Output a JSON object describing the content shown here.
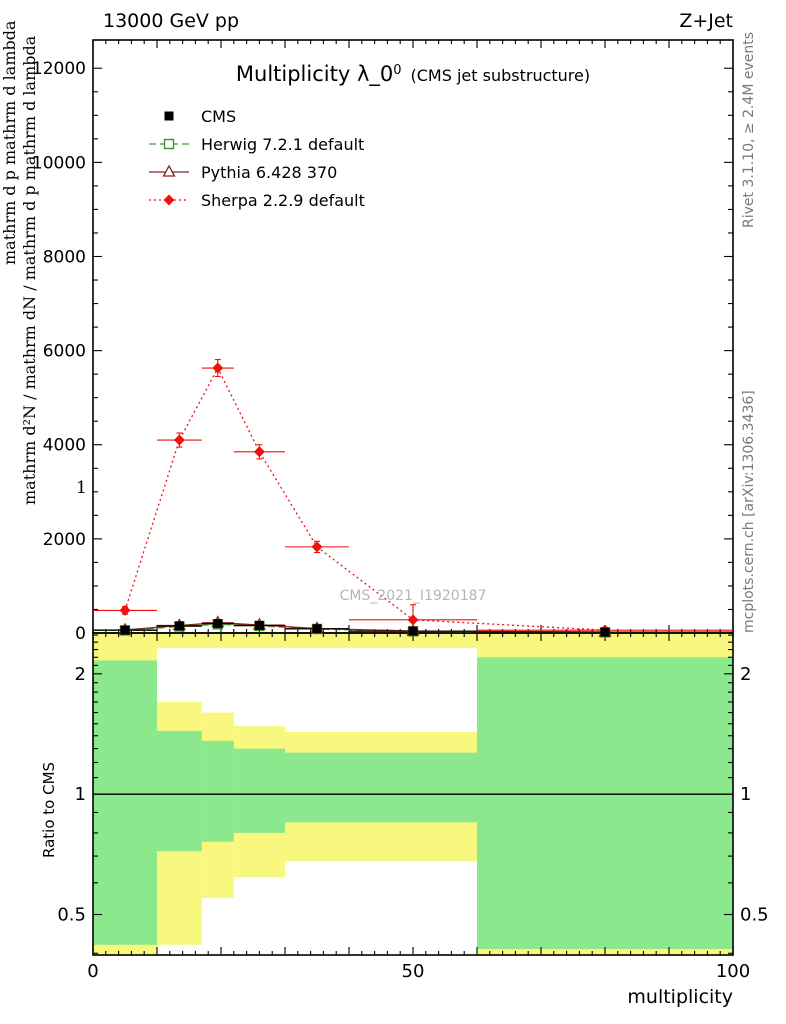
{
  "header": {
    "left": "13000 GeV pp",
    "right": "Z+Jet"
  },
  "title": {
    "main": "Multiplicity λ_0",
    "sup": "0",
    "paren": "(CMS jet substructure)"
  },
  "watermark": "CMS_2021_I1920187",
  "side_notes": {
    "top": "Rivet 3.1.10, ≥ 2.4M events",
    "bottom": "mcplots.cern.ch [arXiv:1306.3436]"
  },
  "axis_labels": {
    "x": "multiplicity",
    "ratio_y": "Ratio to CMS",
    "y_garbled_outer": "mathrm d p mathrm d lambda",
    "y_garbled_inner": "mathrm d²N / mathrm dN / mathrm d p mathrm d lambda",
    "y_fragment": "1"
  },
  "chart_data": {
    "type": "line",
    "title": "Multiplicity λ_0^0 (CMS jet substructure)",
    "xlabel": "multiplicity",
    "ylabel": "mathrm d²N / mathrm dN / mathrm d p mathrm d lambda",
    "xlim": [
      0,
      100
    ],
    "ylim_main": [
      0,
      12600
    ],
    "y_ticks_main": [
      0,
      2000,
      4000,
      6000,
      8000,
      10000,
      12000
    ],
    "x_ticks": [
      0,
      50,
      100
    ],
    "grid": false,
    "legend_position": "upper-left",
    "bin_edges": [
      0,
      10,
      17,
      22,
      30,
      40,
      60,
      100
    ],
    "x": [
      5,
      13.5,
      19.5,
      26,
      35,
      50,
      80
    ],
    "series": [
      {
        "name": "CMS",
        "marker": "filled-square",
        "color": "#000000",
        "line": "none",
        "values": [
          60,
          150,
          200,
          160,
          90,
          40,
          18
        ]
      },
      {
        "name": "Herwig 7.2.1 default",
        "marker": "open-square",
        "color": "#339933",
        "line": "dashed",
        "values": [
          55,
          140,
          185,
          150,
          85,
          36,
          15
        ]
      },
      {
        "name": "Pythia 6.428 370",
        "marker": "open-triangle",
        "color": "#8b2222",
        "line": "solid",
        "values": [
          65,
          160,
          220,
          170,
          95,
          42,
          20
        ]
      },
      {
        "name": "Sherpa 2.2.9 default",
        "marker": "filled-diamond",
        "color": "#ee1111",
        "line": "dotted",
        "values": [
          480,
          4100,
          5630,
          3850,
          1830,
          280,
          60
        ],
        "yerr": [
          80,
          150,
          180,
          150,
          120,
          320,
          50
        ]
      }
    ],
    "ratio": {
      "ylabel": "Ratio to CMS",
      "yscale": "log",
      "ylim": [
        0.396,
        2.53
      ],
      "yticks": [
        0.5,
        1,
        2
      ],
      "reference_line": 1,
      "band_colors": {
        "yellow": "#f8f87e",
        "green": "#8ce88c"
      },
      "bands": [
        {
          "x0": 0,
          "x1": 100,
          "yellow": [
            2.32,
            2.53
          ]
        },
        {
          "x0": 0,
          "x1": 10,
          "yellow": [
            0.396,
            2.53
          ],
          "green": [
            0.42,
            2.16
          ]
        },
        {
          "x0": 10,
          "x1": 17,
          "yellow": [
            0.42,
            1.7
          ],
          "green": [
            0.72,
            1.44
          ]
        },
        {
          "x0": 17,
          "x1": 22,
          "yellow": [
            0.55,
            1.6
          ],
          "green": [
            0.76,
            1.36
          ]
        },
        {
          "x0": 22,
          "x1": 30,
          "yellow": [
            0.62,
            1.48
          ],
          "green": [
            0.8,
            1.3
          ]
        },
        {
          "x0": 30,
          "x1": 60,
          "yellow": [
            0.68,
            1.43
          ],
          "green": [
            0.85,
            1.27
          ]
        },
        {
          "x0": 60,
          "x1": 100,
          "yellow": [
            0.396,
            2.53
          ],
          "green": [
            0.41,
            2.2
          ]
        }
      ]
    }
  }
}
